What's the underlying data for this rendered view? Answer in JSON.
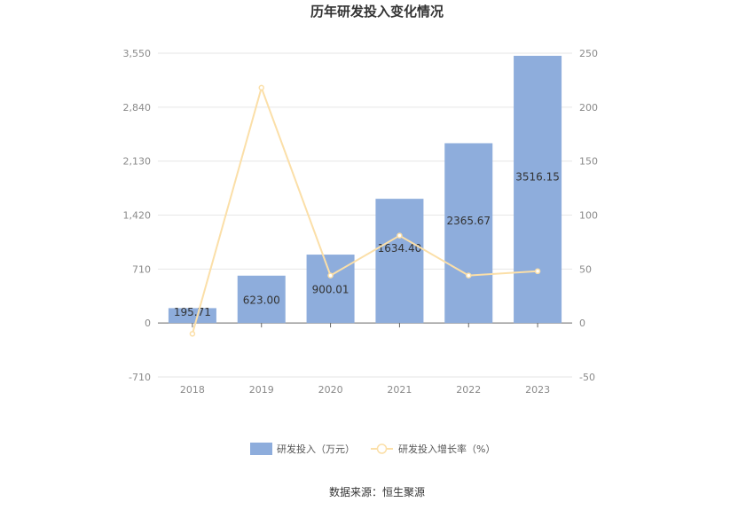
{
  "chart_data": {
    "type": "bar",
    "title": "历年研发投入变化情况",
    "categories": [
      "2018",
      "2019",
      "2020",
      "2021",
      "2022",
      "2023"
    ],
    "series": [
      {
        "name": "研发投入（万元）",
        "type": "bar",
        "axis": "left",
        "values": [
          195.71,
          623.0,
          900.01,
          1634.4,
          2365.67,
          3516.15
        ],
        "labels": [
          "195.71",
          "623.00",
          "900.01",
          "1634.40",
          "2365.67",
          "3516.15"
        ],
        "color": "#8eaddc"
      },
      {
        "name": "研发投入增长率（%）",
        "type": "line",
        "axis": "right",
        "values": [
          -10,
          218,
          44,
          81,
          44,
          48
        ],
        "color": "#fbdfa8"
      }
    ],
    "y_left": {
      "ylim": [
        -710,
        3550
      ],
      "ticks": [
        "-710",
        "0",
        "710",
        "1,420",
        "2,130",
        "2,840",
        "3,550"
      ],
      "tick_values": [
        -710,
        0,
        710,
        1420,
        2130,
        2840,
        3550
      ]
    },
    "y_right": {
      "ylim": [
        -50,
        250
      ],
      "ticks": [
        "-50",
        "0",
        "50",
        "100",
        "150",
        "200",
        "250"
      ],
      "tick_values": [
        -50,
        0,
        50,
        100,
        150,
        200,
        250
      ]
    },
    "grid": true,
    "legend_position": "bottom-center",
    "source": "数据来源：恒生聚源"
  }
}
